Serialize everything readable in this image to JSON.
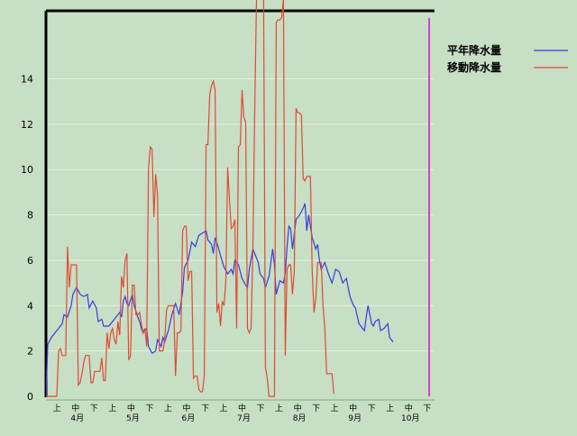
{
  "chart_data": {
    "type": "line",
    "ylim": [
      0,
      17
    ],
    "yticks": [
      0,
      2,
      4,
      6,
      8,
      10,
      12,
      14
    ],
    "x_range": [
      0,
      216
    ],
    "grid": true,
    "legend_position": "top-right",
    "dekad_labels": [
      {
        "pos": 1.5,
        "text": "上"
      },
      {
        "pos": 4.5,
        "text": "中"
      },
      {
        "pos": 7.5,
        "text": "下"
      },
      {
        "pos": 10.5,
        "text": "上"
      },
      {
        "pos": 13.5,
        "text": "中"
      },
      {
        "pos": 16.5,
        "text": "下"
      },
      {
        "pos": 19.5,
        "text": "上"
      },
      {
        "pos": 22.5,
        "text": "中"
      },
      {
        "pos": 25.5,
        "text": "下"
      },
      {
        "pos": 28.5,
        "text": "上"
      },
      {
        "pos": 31.5,
        "text": "中"
      },
      {
        "pos": 34.5,
        "text": "下"
      },
      {
        "pos": 37.5,
        "text": "上"
      },
      {
        "pos": 40.5,
        "text": "中"
      },
      {
        "pos": 43.5,
        "text": "下"
      },
      {
        "pos": 46.5,
        "text": "上"
      },
      {
        "pos": 49.5,
        "text": "中"
      },
      {
        "pos": 52.5,
        "text": "下"
      },
      {
        "pos": 55.5,
        "text": "上"
      },
      {
        "pos": 58.5,
        "text": "中"
      },
      {
        "pos": 61.5,
        "text": "下"
      }
    ],
    "month_labels": [
      {
        "pos": 4.5,
        "text": "4月"
      },
      {
        "pos": 13.5,
        "text": "5月"
      },
      {
        "pos": 22.5,
        "text": "6月"
      },
      {
        "pos": 31.5,
        "text": "7月"
      },
      {
        "pos": 40.5,
        "text": "8月"
      },
      {
        "pos": 49.5,
        "text": "9月"
      },
      {
        "pos": 58.5,
        "text": "10月"
      }
    ],
    "series": [
      {
        "name": "平年降水量",
        "color": "#3a3ae0",
        "points": [
          [
            0,
            0
          ],
          [
            1,
            2.3
          ],
          [
            3,
            2.6
          ],
          [
            5,
            2.8
          ],
          [
            7,
            3.0
          ],
          [
            9,
            3.2
          ],
          [
            10,
            3.6
          ],
          [
            12,
            3.5
          ],
          [
            14,
            4.0
          ],
          [
            15,
            4.5
          ],
          [
            17,
            4.8
          ],
          [
            19,
            4.5
          ],
          [
            21,
            4.4
          ],
          [
            23,
            4.5
          ],
          [
            24,
            3.9
          ],
          [
            26,
            4.2
          ],
          [
            28,
            3.9
          ],
          [
            29,
            3.3
          ],
          [
            31,
            3.4
          ],
          [
            32,
            3.1
          ],
          [
            35,
            3.1
          ],
          [
            37,
            3.3
          ],
          [
            39,
            3.5
          ],
          [
            41,
            3.7
          ],
          [
            42,
            3.5
          ],
          [
            43,
            4.2
          ],
          [
            44,
            4.4
          ],
          [
            45,
            4.1
          ],
          [
            46,
            4.0
          ],
          [
            48,
            4.5
          ],
          [
            49,
            4.0
          ],
          [
            51,
            3.5
          ],
          [
            52,
            3.3
          ],
          [
            53,
            3.0
          ],
          [
            54,
            2.8
          ],
          [
            56,
            3.0
          ],
          [
            57,
            2.2
          ],
          [
            59,
            1.9
          ],
          [
            61,
            2.0
          ],
          [
            62,
            2.5
          ],
          [
            64,
            2.2
          ],
          [
            65,
            2.6
          ],
          [
            66,
            2.4
          ],
          [
            68,
            2.9
          ],
          [
            70,
            3.6
          ],
          [
            72,
            4.1
          ],
          [
            74,
            3.6
          ],
          [
            76,
            4.6
          ],
          [
            77,
            5.7
          ],
          [
            79,
            6.0
          ],
          [
            81,
            6.8
          ],
          [
            83,
            6.6
          ],
          [
            85,
            7.1
          ],
          [
            87,
            7.2
          ],
          [
            89,
            7.3
          ],
          [
            90,
            6.9
          ],
          [
            92,
            6.7
          ],
          [
            93,
            6.3
          ],
          [
            94,
            7.0
          ],
          [
            96,
            6.5
          ],
          [
            97,
            6.2
          ],
          [
            99,
            5.7
          ],
          [
            101,
            5.4
          ],
          [
            103,
            5.6
          ],
          [
            104,
            5.4
          ],
          [
            105,
            6.0
          ],
          [
            107,
            5.8
          ],
          [
            109,
            5.2
          ],
          [
            111,
            4.9
          ],
          [
            112,
            4.8
          ],
          [
            113,
            5.6
          ],
          [
            115,
            6.5
          ],
          [
            116,
            6.3
          ],
          [
            118,
            5.9
          ],
          [
            119,
            5.4
          ],
          [
            121,
            5.2
          ],
          [
            122,
            4.8
          ],
          [
            124,
            5.3
          ],
          [
            126,
            6.5
          ],
          [
            127,
            5.8
          ],
          [
            128,
            4.5
          ],
          [
            130,
            5.1
          ],
          [
            132,
            5.0
          ],
          [
            133,
            5.4
          ],
          [
            134,
            6.6
          ],
          [
            135,
            7.5
          ],
          [
            136,
            7.4
          ],
          [
            137,
            6.5
          ],
          [
            139,
            7.8
          ],
          [
            141,
            8.0
          ],
          [
            143,
            8.3
          ],
          [
            144,
            8.5
          ],
          [
            145,
            7.3
          ],
          [
            146,
            8.0
          ],
          [
            148,
            7.0
          ],
          [
            150,
            6.5
          ],
          [
            151,
            6.7
          ],
          [
            152,
            6.0
          ],
          [
            153,
            5.6
          ],
          [
            155,
            5.9
          ],
          [
            157,
            5.4
          ],
          [
            158,
            5.2
          ],
          [
            159,
            5.0
          ],
          [
            161,
            5.6
          ],
          [
            163,
            5.5
          ],
          [
            165,
            5.0
          ],
          [
            167,
            5.2
          ],
          [
            169,
            4.4
          ],
          [
            171,
            4.0
          ],
          [
            172,
            3.9
          ],
          [
            174,
            3.2
          ],
          [
            176,
            3.0
          ],
          [
            177,
            2.9
          ],
          [
            178,
            3.5
          ],
          [
            179,
            4.0
          ],
          [
            181,
            3.2
          ],
          [
            182,
            3.1
          ],
          [
            183,
            3.3
          ],
          [
            185,
            3.4
          ],
          [
            186,
            2.9
          ],
          [
            188,
            3.0
          ],
          [
            189,
            3.1
          ],
          [
            190,
            3.2
          ],
          [
            191,
            2.6
          ],
          [
            193,
            2.4
          ]
        ]
      },
      {
        "name": "移動降水量",
        "color": "#e04a34",
        "points": [
          [
            0,
            0
          ],
          [
            1,
            0
          ],
          [
            2,
            0
          ],
          [
            3,
            0
          ],
          [
            4,
            0
          ],
          [
            5,
            0
          ],
          [
            6,
            0
          ],
          [
            7,
            2.0
          ],
          [
            8,
            2.1
          ],
          [
            9,
            1.8
          ],
          [
            10,
            1.8
          ],
          [
            11,
            1.8
          ],
          [
            12,
            6.6
          ],
          [
            13,
            4.8
          ],
          [
            14,
            5.8
          ],
          [
            15,
            5.8
          ],
          [
            16,
            5.8
          ],
          [
            17,
            5.8
          ],
          [
            18,
            0.5
          ],
          [
            19,
            0.6
          ],
          [
            20,
            1.0
          ],
          [
            21,
            1.5
          ],
          [
            22,
            1.8
          ],
          [
            24,
            1.8
          ],
          [
            25,
            0.6
          ],
          [
            26,
            0.6
          ],
          [
            27,
            1.1
          ],
          [
            28,
            1.1
          ],
          [
            30,
            1.1
          ],
          [
            31,
            1.7
          ],
          [
            32,
            0.7
          ],
          [
            33,
            0.7
          ],
          [
            34,
            2.8
          ],
          [
            35,
            2.1
          ],
          [
            36,
            2.8
          ],
          [
            37,
            3.0
          ],
          [
            38,
            2.5
          ],
          [
            39,
            2.3
          ],
          [
            40,
            3.3
          ],
          [
            41,
            2.7
          ],
          [
            42,
            5.3
          ],
          [
            43,
            4.8
          ],
          [
            44,
            6.0
          ],
          [
            45,
            6.3
          ],
          [
            46,
            1.6
          ],
          [
            47,
            1.8
          ],
          [
            48,
            4.9
          ],
          [
            49,
            4.9
          ],
          [
            50,
            3.6
          ],
          [
            51,
            3.6
          ],
          [
            52,
            3.7
          ],
          [
            53,
            3.2
          ],
          [
            54,
            2.8
          ],
          [
            55,
            3.0
          ],
          [
            56,
            2.2
          ],
          [
            57,
            10.0
          ],
          [
            58,
            11.0
          ],
          [
            59,
            10.9
          ],
          [
            60,
            7.9
          ],
          [
            61,
            9.8
          ],
          [
            62,
            8.9
          ],
          [
            63,
            2.0
          ],
          [
            64,
            2.0
          ],
          [
            65,
            2.0
          ],
          [
            66,
            2.5
          ],
          [
            67,
            3.8
          ],
          [
            68,
            4.0
          ],
          [
            69,
            4.0
          ],
          [
            70,
            4.0
          ],
          [
            71,
            4.0
          ],
          [
            72,
            0.9
          ],
          [
            73,
            2.8
          ],
          [
            74,
            2.8
          ],
          [
            75,
            2.9
          ],
          [
            76,
            7.3
          ],
          [
            77,
            7.5
          ],
          [
            78,
            7.5
          ],
          [
            79,
            5.1
          ],
          [
            80,
            5.5
          ],
          [
            81,
            5.5
          ],
          [
            82,
            0.8
          ],
          [
            83,
            0.9
          ],
          [
            84,
            0.9
          ],
          [
            85,
            0.3
          ],
          [
            86,
            0.2
          ],
          [
            87,
            0.2
          ],
          [
            88,
            0.9
          ],
          [
            89,
            11.1
          ],
          [
            90,
            11.1
          ],
          [
            91,
            13.3
          ],
          [
            92,
            13.7
          ],
          [
            93,
            13.9
          ],
          [
            94,
            13.5
          ],
          [
            95,
            3.7
          ],
          [
            96,
            4.1
          ],
          [
            97,
            3.1
          ],
          [
            98,
            4.2
          ],
          [
            99,
            4.0
          ],
          [
            100,
            5.1
          ],
          [
            101,
            10.1
          ],
          [
            102,
            8.7
          ],
          [
            103,
            7.4
          ],
          [
            104,
            7.5
          ],
          [
            105,
            7.8
          ],
          [
            106,
            3.0
          ],
          [
            107,
            11.0
          ],
          [
            108,
            11.1
          ],
          [
            109,
            13.5
          ],
          [
            110,
            12.3
          ],
          [
            111,
            12.1
          ],
          [
            112,
            3.0
          ],
          [
            113,
            2.8
          ],
          [
            114,
            3.0
          ],
          [
            115,
            6.5
          ],
          [
            116,
            12.5
          ],
          [
            117,
            17.5
          ],
          [
            119,
            17.5
          ],
          [
            120,
            17.5
          ],
          [
            121,
            17.5
          ],
          [
            122,
            1.3
          ],
          [
            123,
            0.8
          ],
          [
            124,
            0.0
          ],
          [
            125,
            0.0
          ],
          [
            126,
            0.0
          ],
          [
            127,
            0.0
          ],
          [
            128,
            16.5
          ],
          [
            129,
            16.6
          ],
          [
            130,
            16.6
          ],
          [
            131,
            16.7
          ],
          [
            132,
            17.5
          ],
          [
            133,
            1.8
          ],
          [
            134,
            5.6
          ],
          [
            135,
            5.8
          ],
          [
            136,
            5.8
          ],
          [
            137,
            4.5
          ],
          [
            138,
            5.5
          ],
          [
            139,
            12.7
          ],
          [
            140,
            12.5
          ],
          [
            141,
            12.5
          ],
          [
            142,
            12.4
          ],
          [
            143,
            9.6
          ],
          [
            144,
            9.5
          ],
          [
            145,
            9.7
          ],
          [
            146,
            9.7
          ],
          [
            147,
            9.7
          ],
          [
            148,
            5.5
          ],
          [
            149,
            3.7
          ],
          [
            150,
            4.3
          ],
          [
            151,
            5.9
          ],
          [
            152,
            5.9
          ],
          [
            153,
            5.9
          ],
          [
            154,
            4.0
          ],
          [
            155,
            3.0
          ],
          [
            156,
            1.0
          ],
          [
            157,
            1.0
          ],
          [
            158,
            1.0
          ],
          [
            159,
            1.0
          ],
          [
            160,
            0.1
          ]
        ]
      }
    ]
  }
}
